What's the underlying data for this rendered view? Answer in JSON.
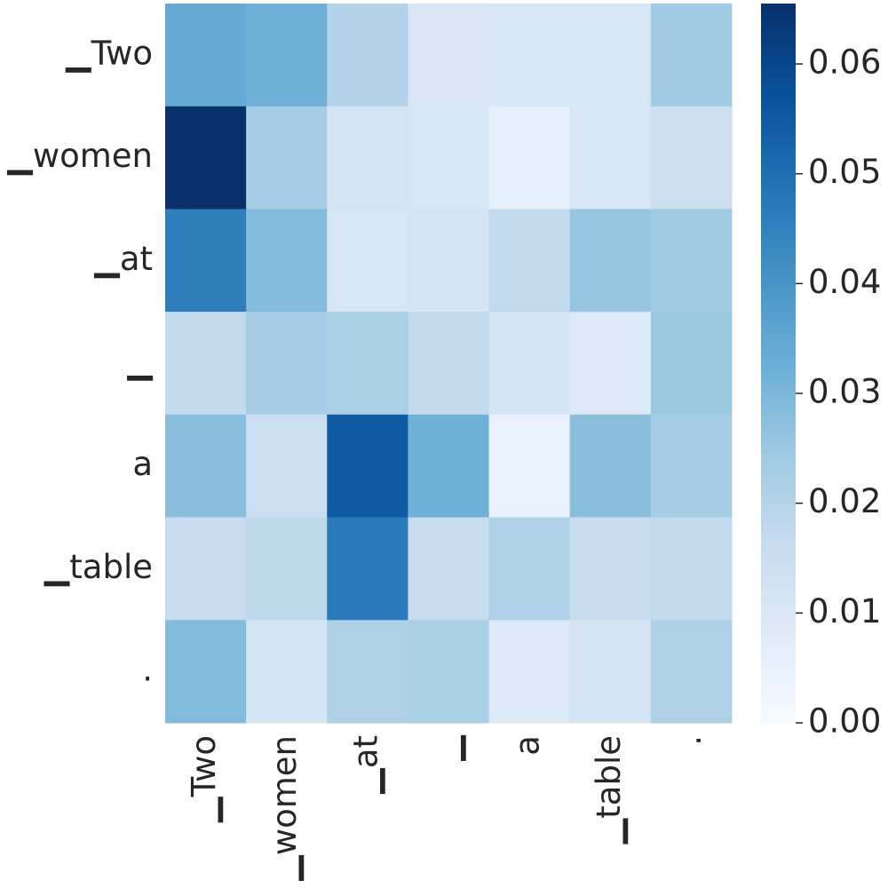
{
  "chart_data": {
    "type": "heatmap",
    "title": "",
    "xlabel": "",
    "ylabel": "",
    "x_labels": [
      "▁Two",
      "▁women",
      "▁at",
      "▁",
      "a",
      "▁table",
      "."
    ],
    "y_labels": [
      "▁Two",
      "▁women",
      "▁at",
      "▁",
      "a",
      "▁table",
      "."
    ],
    "values": [
      [
        0.034,
        0.032,
        0.02,
        0.01,
        0.011,
        0.011,
        0.024
      ],
      [
        0.066,
        0.023,
        0.012,
        0.011,
        0.006,
        0.011,
        0.015
      ],
      [
        0.046,
        0.029,
        0.011,
        0.012,
        0.017,
        0.026,
        0.024
      ],
      [
        0.017,
        0.023,
        0.022,
        0.017,
        0.012,
        0.009,
        0.025
      ],
      [
        0.028,
        0.015,
        0.055,
        0.032,
        0.005,
        0.028,
        0.023
      ],
      [
        0.016,
        0.018,
        0.047,
        0.016,
        0.021,
        0.016,
        0.017
      ],
      [
        0.029,
        0.012,
        0.021,
        0.022,
        0.009,
        0.012,
        0.021
      ]
    ],
    "colorbar": {
      "colormap": "Blues",
      "vmin": 0.0,
      "vmax": 0.0655,
      "ticks": [
        0.0,
        0.01,
        0.02,
        0.03,
        0.04,
        0.05,
        0.06
      ],
      "tick_labels": [
        "0.00",
        "0.01",
        "0.02",
        "0.03",
        "0.04",
        "0.05",
        "0.06"
      ],
      "low_color": "#f7fbff",
      "high_color": "#08306b"
    },
    "grid": false
  }
}
